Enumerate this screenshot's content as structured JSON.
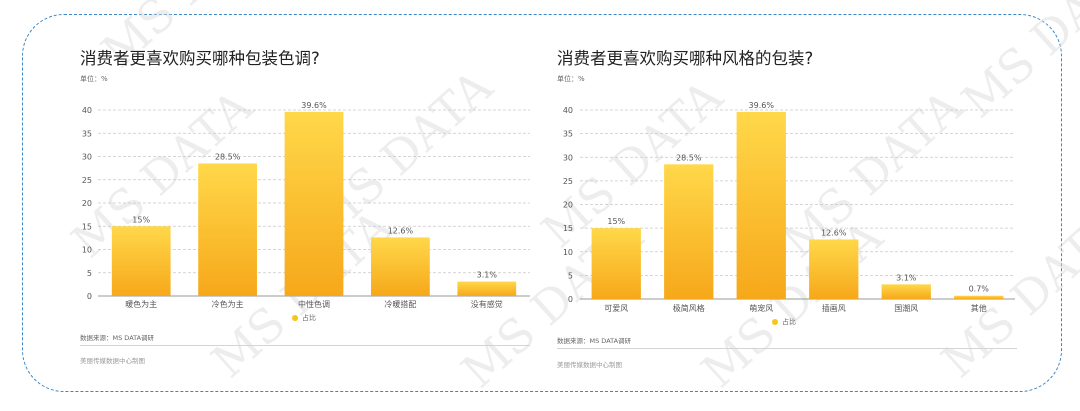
{
  "colors": {
    "frame": "#3a86c8",
    "bar_top": "#ffd84a",
    "bar_bottom": "#f6a81a",
    "legend_dot": "#f5c518",
    "grid": "#c8c8c8",
    "watermark": "#d9d9d9"
  },
  "watermark_text": "MS DATA",
  "charts": [
    {
      "title": "消费者更喜欢购买哪种包装色调?",
      "unit": "单位：%",
      "legend_label": "占比",
      "source": "数据来源：MS DATA调研",
      "credit": "美丽传媒数据中心制图"
    },
    {
      "title": "消费者更喜欢购买哪种风格的包装?",
      "unit": "单位：%",
      "legend_label": "占比",
      "source": "数据来源：MS DATA调研",
      "credit": "美丽传媒数据中心制图"
    }
  ],
  "chart_data": [
    {
      "type": "bar",
      "title": "消费者更喜欢购买哪种包装色调?",
      "ylabel": "单位：%",
      "categories": [
        "暖色为主",
        "冷色为主",
        "中性色调",
        "冷暖搭配",
        "没有感觉"
      ],
      "series": [
        {
          "name": "占比",
          "values": [
            15,
            28.5,
            39.6,
            12.6,
            3.1
          ]
        }
      ],
      "value_labels": [
        "15%",
        "28.5%",
        "39.6%",
        "12.6%",
        "3.1%"
      ],
      "yticks": [
        0,
        5,
        10,
        15,
        20,
        25,
        30,
        35,
        40
      ],
      "ylim": [
        0,
        40
      ],
      "grid": true,
      "legend": "bottom-center"
    },
    {
      "type": "bar",
      "title": "消费者更喜欢购买哪种风格的包装?",
      "ylabel": "单位：%",
      "categories": [
        "可爱风",
        "极简风格",
        "萌宠风",
        "插画风",
        "国潮风",
        "其他"
      ],
      "series": [
        {
          "name": "占比",
          "values": [
            15,
            28.5,
            39.6,
            12.6,
            3.1,
            0.7
          ]
        }
      ],
      "value_labels": [
        "15%",
        "28.5%",
        "39.6%",
        "12.6%",
        "3.1%",
        "0.7%"
      ],
      "yticks": [
        0,
        5,
        10,
        15,
        20,
        25,
        30,
        35,
        40
      ],
      "ylim": [
        0,
        40
      ],
      "grid": true,
      "legend": "bottom-center"
    }
  ]
}
